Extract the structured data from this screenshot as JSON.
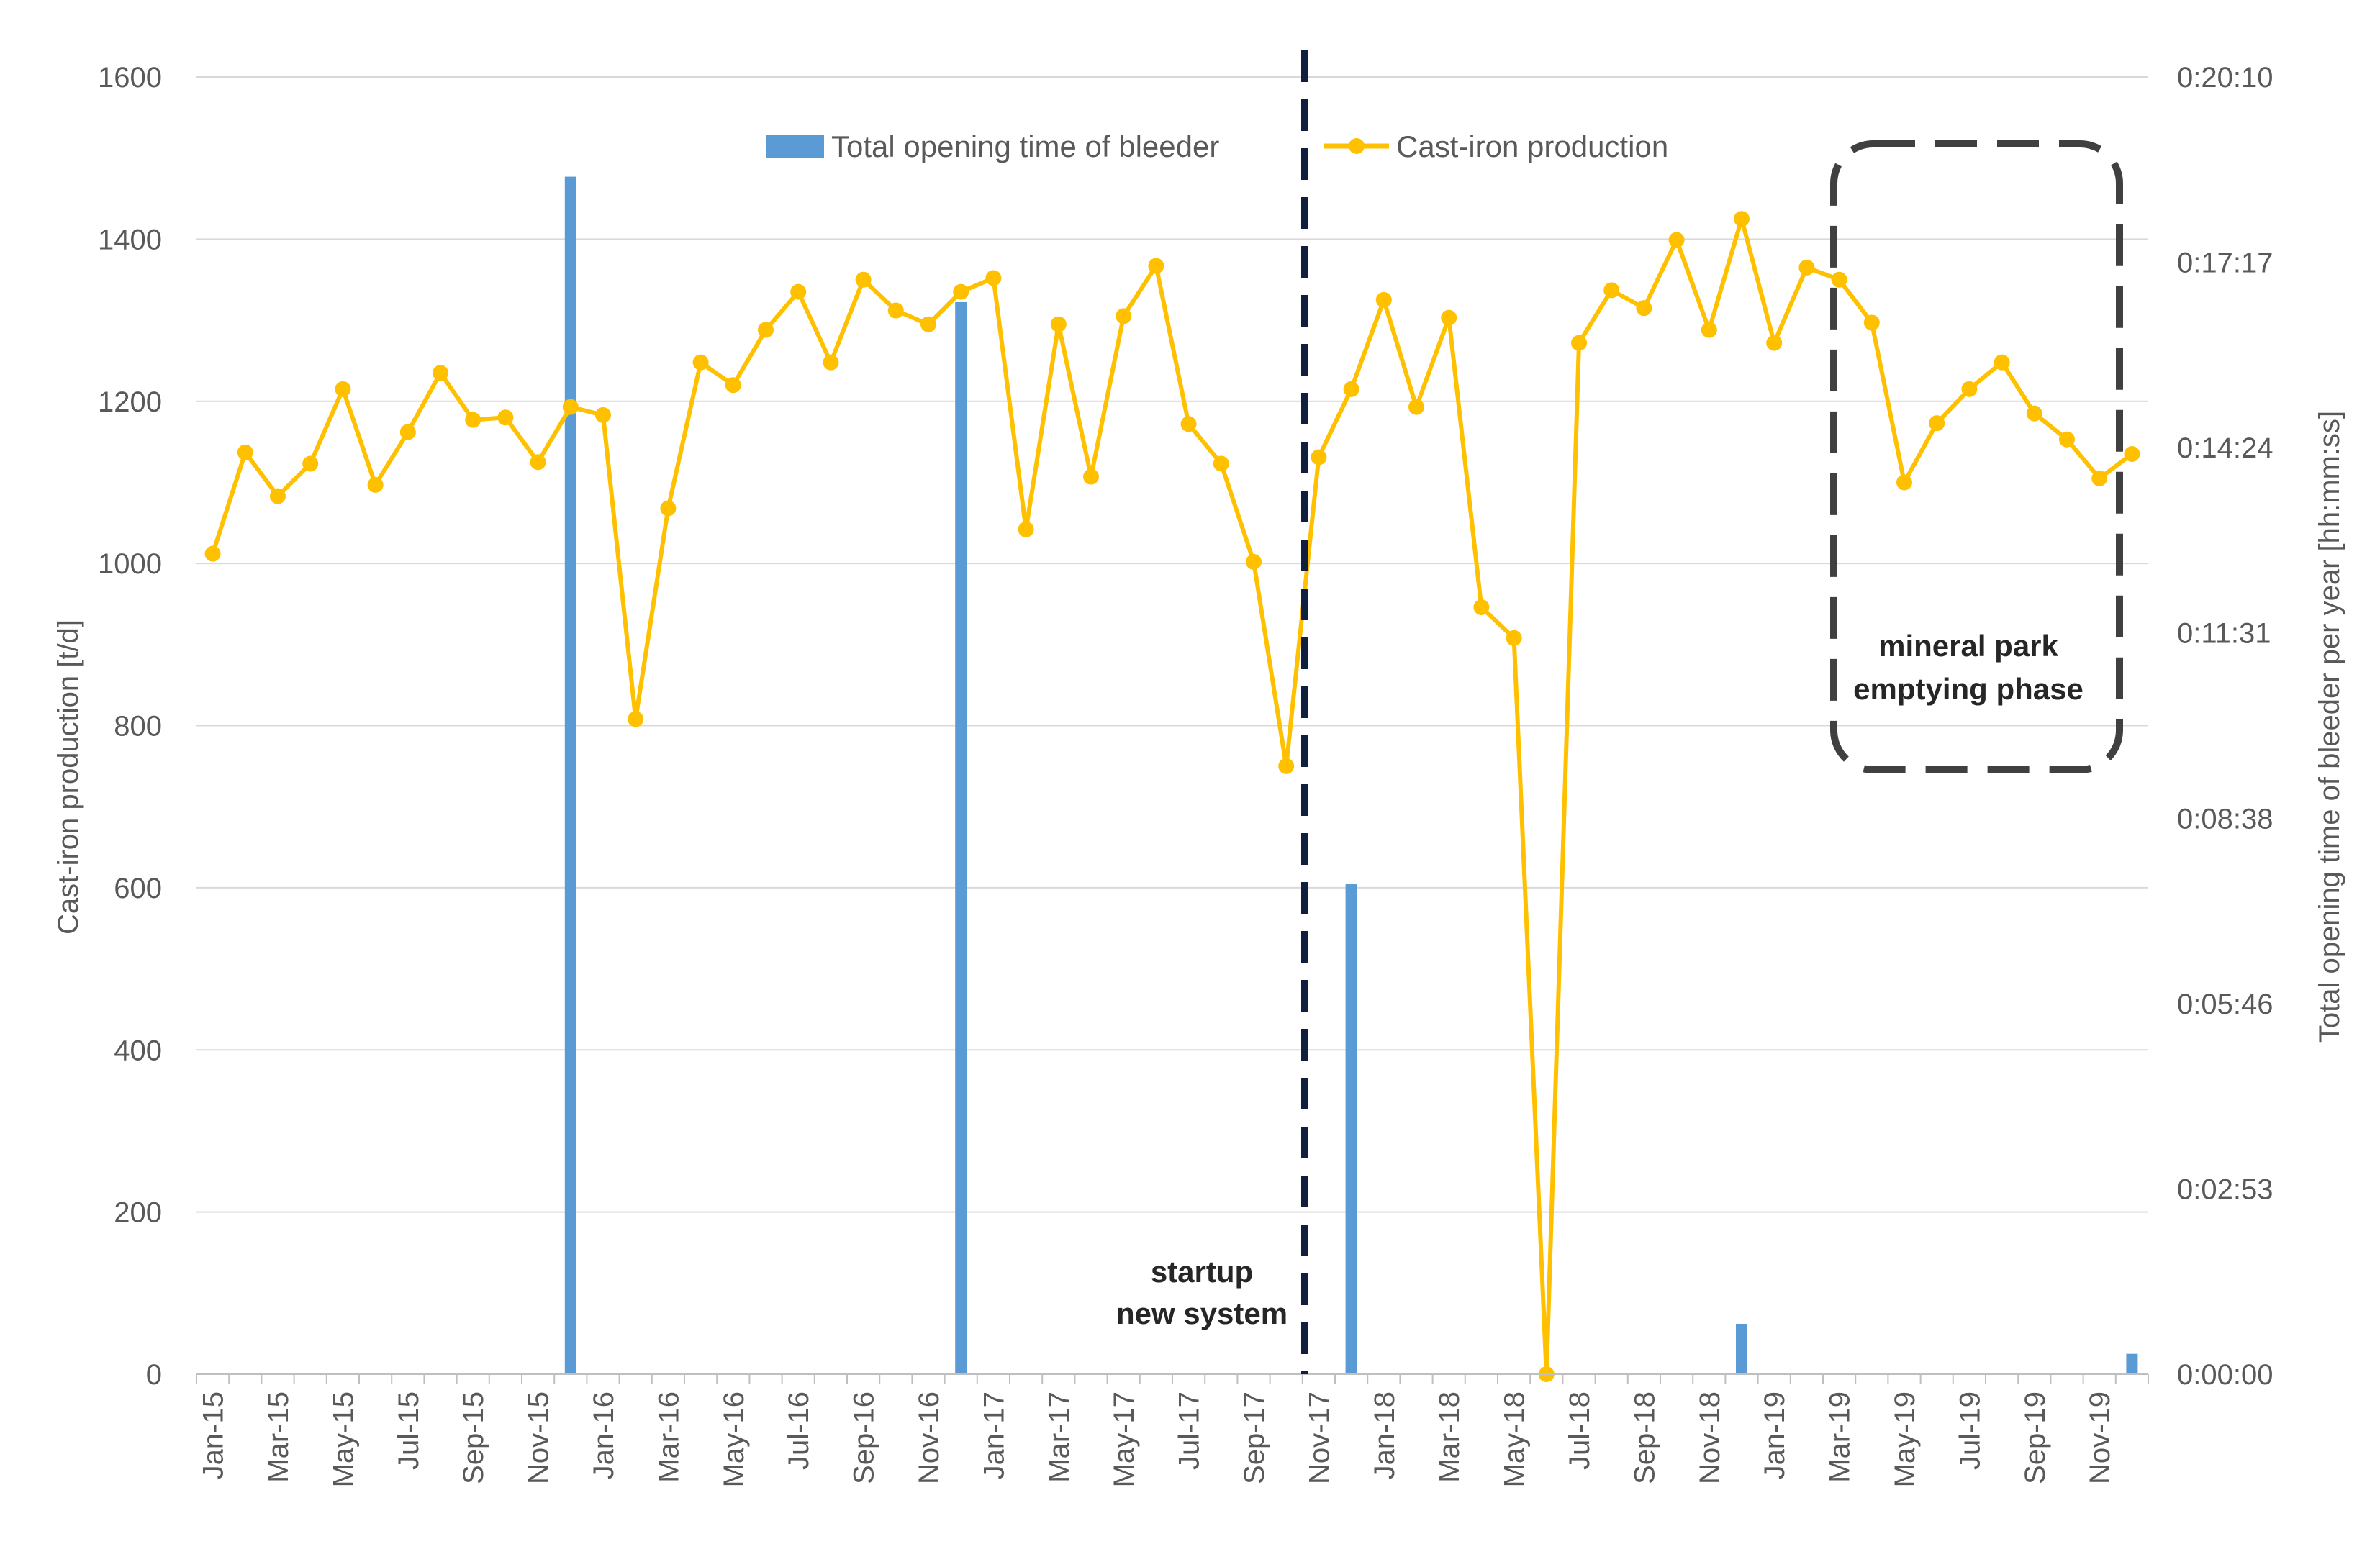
{
  "chart_data": {
    "type": "bar+line",
    "title": "",
    "xlabel": "",
    "ylabel_left": "Cast-iron production [t/d]",
    "ylabel_right": "Total opening time of bleeder per year [hh:mm:ss]",
    "ylim_left": [
      0,
      1600
    ],
    "left_ticks": [
      "0",
      "200",
      "400",
      "600",
      "800",
      "1000",
      "1200",
      "1400",
      "1600"
    ],
    "ylim_right_seconds": [
      0,
      1210
    ],
    "right_ticks": [
      "0:00:00",
      "0:02:53",
      "0:05:46",
      "0:08:38",
      "0:11:31",
      "0:14:24",
      "0:17:17",
      "0:20:10"
    ],
    "grid": true,
    "months": [
      "Jan-15",
      "Feb-15",
      "Mar-15",
      "Apr-15",
      "May-15",
      "Jun-15",
      "Jul-15",
      "Aug-15",
      "Sep-15",
      "Oct-15",
      "Nov-15",
      "Dec-15",
      "Jan-16",
      "Feb-16",
      "Mar-16",
      "Apr-16",
      "May-16",
      "Jun-16",
      "Jul-16",
      "Aug-16",
      "Sep-16",
      "Oct-16",
      "Nov-16",
      "Dec-16",
      "Jan-17",
      "Feb-17",
      "Mar-17",
      "Apr-17",
      "May-17",
      "Jun-17",
      "Jul-17",
      "Aug-17",
      "Sep-17",
      "Oct-17",
      "Nov-17",
      "Dec-17",
      "Jan-18",
      "Feb-18",
      "Mar-18",
      "Apr-18",
      "May-18",
      "Jun-18",
      "Jul-18",
      "Aug-18",
      "Sep-18",
      "Oct-18",
      "Nov-18",
      "Dec-18",
      "Jan-19",
      "Feb-19",
      "Mar-19",
      "Apr-19",
      "May-19",
      "Jun-19",
      "Jul-19",
      "Aug-19",
      "Sep-19",
      "Oct-19",
      "Nov-19",
      "Dec-19"
    ],
    "x_tick_labels": [
      "Jan-15",
      "Mar-15",
      "May-15",
      "Jul-15",
      "Sep-15",
      "Nov-15",
      "Jan-16",
      "Mar-16",
      "May-16",
      "Jul-16",
      "Sep-16",
      "Nov-16",
      "Jan-17",
      "Mar-17",
      "May-17",
      "Jul-17",
      "Sep-17",
      "Nov-17",
      "Jan-18",
      "Mar-18",
      "May-18",
      "Jul-18",
      "Sep-18",
      "Nov-18",
      "Jan-19",
      "Mar-19",
      "May-19",
      "Jul-19",
      "Sep-19",
      "Nov-19"
    ],
    "series": [
      {
        "name": "Cast-iron production",
        "type": "line",
        "axis": "left",
        "color": "#FFC000",
        "values": [
          1012,
          1137,
          1083,
          1123,
          1215,
          1097,
          1162,
          1235,
          1177,
          1180,
          1125,
          1193,
          1183,
          808,
          1068,
          1248,
          1220,
          1288,
          1335,
          1248,
          1350,
          1312,
          1295,
          1335,
          1352,
          1042,
          1295,
          1107,
          1305,
          1367,
          1172,
          1123,
          1002,
          750,
          1131,
          1215,
          1325,
          1193,
          1303,
          946,
          908,
          0,
          1272,
          1337,
          1315,
          1399,
          1288,
          1425,
          1272,
          1365,
          1350,
          1297,
          1100,
          1173,
          1215,
          1248,
          1185,
          1153,
          1105,
          1135
        ]
      },
      {
        "name": "Total opening time of bleeder",
        "type": "bar",
        "axis": "right",
        "unit": "seconds",
        "color": "#5B9BD5",
        "values": [
          0,
          0,
          0,
          0,
          0,
          0,
          0,
          0,
          0,
          0,
          0,
          1117,
          0,
          0,
          0,
          0,
          0,
          0,
          0,
          0,
          0,
          0,
          0,
          1000,
          0,
          0,
          0,
          0,
          0,
          0,
          0,
          0,
          0,
          0,
          0,
          457,
          0,
          0,
          0,
          0,
          0,
          0,
          0,
          0,
          0,
          0,
          0,
          47,
          0,
          0,
          0,
          0,
          0,
          0,
          0,
          0,
          0,
          0,
          0,
          19
        ]
      }
    ],
    "legend": [
      "Total opening time of bleeder",
      "Cast-iron production"
    ],
    "legend_position": "top-center",
    "annotations": {
      "startup_line1": "startup",
      "startup_line2": "new system",
      "startup_month": "Nov-17",
      "mineral_line1": "mineral park",
      "mineral_line2": "emptying phase",
      "mineral_range": [
        "Feb-19",
        "Nov-19"
      ]
    }
  }
}
